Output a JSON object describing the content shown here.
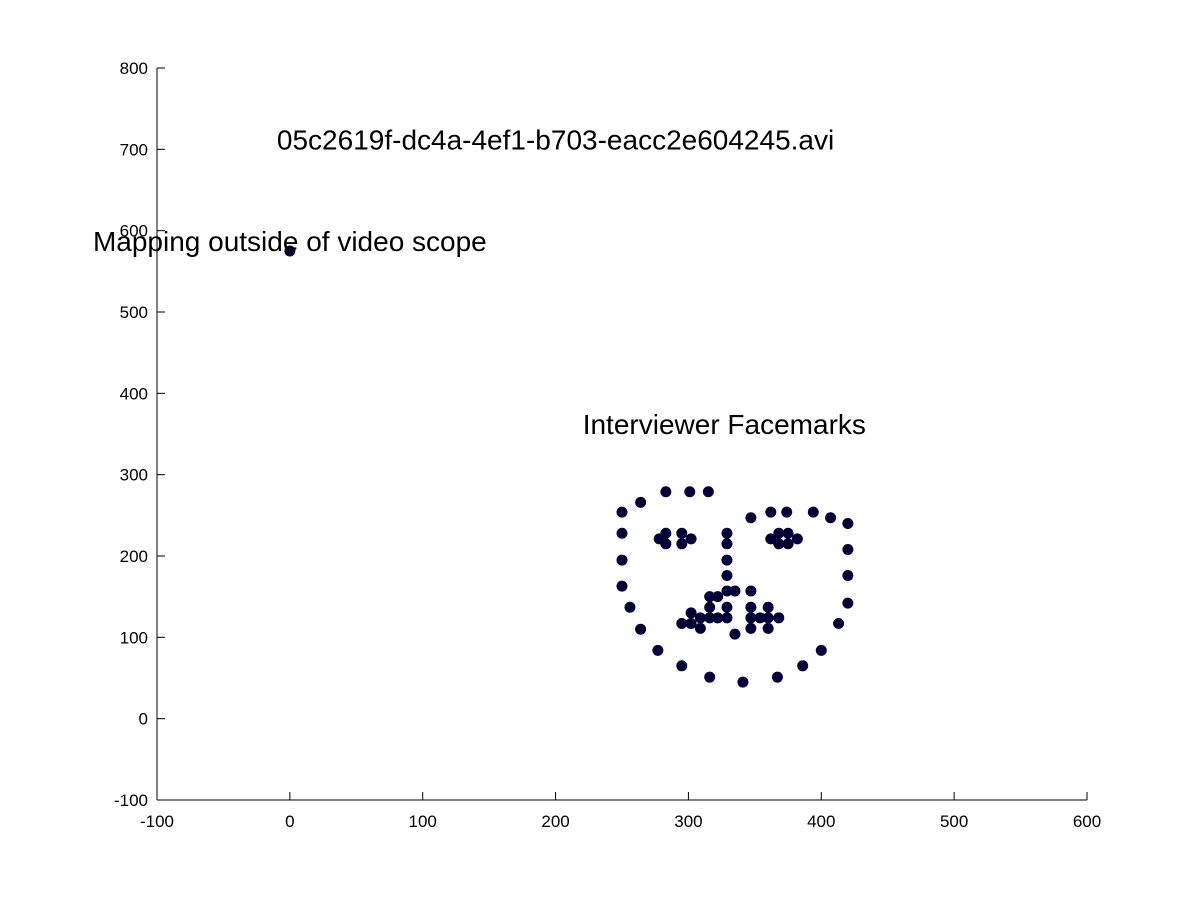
{
  "chart_data": {
    "type": "scatter",
    "xlim": [
      -100,
      600
    ],
    "ylim": [
      -100,
      800
    ],
    "xticks": [
      -100,
      0,
      100,
      200,
      300,
      400,
      500,
      600
    ],
    "yticks": [
      -100,
      0,
      100,
      200,
      300,
      400,
      500,
      600,
      700,
      800
    ],
    "grid": false,
    "annotations": [
      {
        "text": "05c2619f-dc4a-4ef1-b703-eacc2e604245.avi",
        "x": 200,
        "y": 700
      },
      {
        "text": "Mapping outside of video scope",
        "x": 0,
        "y": 575
      },
      {
        "text": "Interviewer Facemarks",
        "x": 327,
        "y": 350
      }
    ],
    "series": [
      {
        "marker_color": "#000033",
        "points": [
          [
            0,
            575
          ],
          [
            250,
            254
          ],
          [
            250,
            228
          ],
          [
            250,
            195
          ],
          [
            250,
            163
          ],
          [
            256,
            137
          ],
          [
            264,
            110
          ],
          [
            277,
            84
          ],
          [
            295,
            65
          ],
          [
            316,
            51
          ],
          [
            341,
            45
          ],
          [
            367,
            51
          ],
          [
            386,
            65
          ],
          [
            400,
            84
          ],
          [
            413,
            117
          ],
          [
            420,
            142
          ],
          [
            420,
            176
          ],
          [
            420,
            208
          ],
          [
            420,
            240
          ],
          [
            264,
            266
          ],
          [
            283,
            279
          ],
          [
            301,
            279
          ],
          [
            315,
            279
          ],
          [
            347,
            247
          ],
          [
            362,
            254
          ],
          [
            374,
            254
          ],
          [
            394,
            254
          ],
          [
            407,
            247
          ],
          [
            278,
            221
          ],
          [
            283,
            228
          ],
          [
            283,
            215
          ],
          [
            295,
            228
          ],
          [
            295,
            215
          ],
          [
            302,
            221
          ],
          [
            362,
            221
          ],
          [
            368,
            228
          ],
          [
            368,
            215
          ],
          [
            375,
            228
          ],
          [
            375,
            215
          ],
          [
            382,
            221
          ],
          [
            329,
            228
          ],
          [
            329,
            215
          ],
          [
            329,
            195
          ],
          [
            329,
            176
          ],
          [
            329,
            157
          ],
          [
            316,
            150
          ],
          [
            322,
            150
          ],
          [
            335,
            157
          ],
          [
            347,
            157
          ],
          [
            316,
            137
          ],
          [
            329,
            137
          ],
          [
            347,
            137
          ],
          [
            360,
            137
          ],
          [
            295,
            117
          ],
          [
            302,
            130
          ],
          [
            309,
            124
          ],
          [
            316,
            124
          ],
          [
            322,
            124
          ],
          [
            329,
            124
          ],
          [
            347,
            124
          ],
          [
            354,
            124
          ],
          [
            360,
            124
          ],
          [
            368,
            124
          ],
          [
            302,
            117
          ],
          [
            309,
            111
          ],
          [
            335,
            104
          ],
          [
            347,
            111
          ],
          [
            360,
            111
          ]
        ]
      }
    ]
  }
}
